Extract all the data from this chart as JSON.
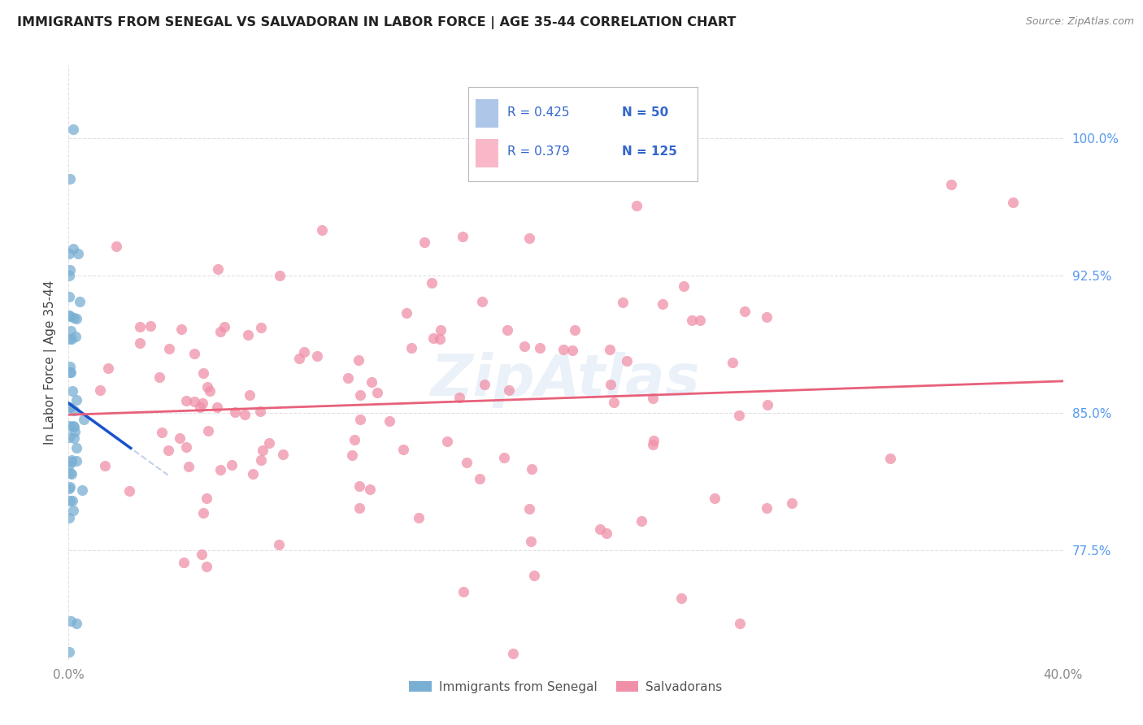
{
  "title": "IMMIGRANTS FROM SENEGAL VS SALVADORAN IN LABOR FORCE | AGE 35-44 CORRELATION CHART",
  "source": "Source: ZipAtlas.com",
  "ylabel_label": "In Labor Force | Age 35-44",
  "legend_label1": "Immigrants from Senegal",
  "legend_label2": "Salvadorans",
  "senegal_color": "#aec6e8",
  "salvadoran_color": "#f9b8c8",
  "senegal_line_color": "#1a52cc",
  "salvadoran_line_color": "#e8607a",
  "senegal_scatter_color": "#7aafd4",
  "salvadoran_scatter_color": "#f090a8",
  "x_min": 0.0,
  "x_max": 0.4,
  "y_min": 0.715,
  "y_max": 1.04,
  "yticks": [
    0.775,
    0.85,
    0.925,
    1.0
  ],
  "ytick_labels": [
    "77.5%",
    "85.0%",
    "92.5%",
    "100.0%"
  ],
  "xtick_labels": [
    "0.0%",
    "40.0%"
  ],
  "xtick_pos": [
    0.0,
    0.4
  ],
  "legend_r1": "R = 0.425",
  "legend_n1": "N = 50",
  "legend_r2": "R = 0.379",
  "legend_n2": "N = 125",
  "watermark": "ZipAtlas",
  "R_senegal": 0.425,
  "R_salvadoran": 0.379
}
